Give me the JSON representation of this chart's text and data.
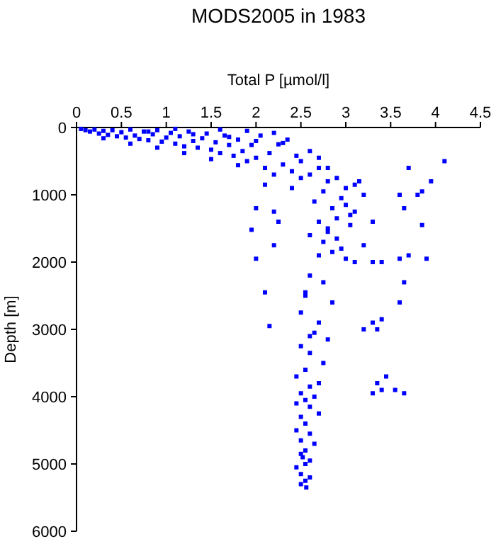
{
  "chart_data": {
    "type": "scatter",
    "title": "MODS2005 in 1983",
    "xlabel": "Total P [µmol/l]",
    "ylabel": "Depth [m]",
    "xlim": [
      0,
      4.5
    ],
    "xticks": [
      0,
      0.5,
      1,
      1.5,
      2,
      2.5,
      3,
      3.5,
      4,
      4.5
    ],
    "ylim": [
      6000,
      0
    ],
    "yticks": [
      0,
      1000,
      2000,
      3000,
      4000,
      5000,
      6000
    ],
    "grid": false,
    "marker": "square",
    "series": [
      {
        "color": "#0000ff",
        "x": [
          0.05,
          0.1,
          0.15,
          0.2,
          0.25,
          0.3,
          0.35,
          0.4,
          0.45,
          0.5,
          0.55,
          0.6,
          0.65,
          0.7,
          0.75,
          0.8,
          0.85,
          0.9,
          0.95,
          1.0,
          1.05,
          1.1,
          1.15,
          1.2,
          1.25,
          1.3,
          1.35,
          1.4,
          1.45,
          1.5,
          1.55,
          1.6,
          1.65,
          1.7,
          1.75,
          1.8,
          1.85,
          1.9,
          1.95,
          2.0,
          2.05,
          2.1,
          2.15,
          2.2,
          2.25,
          2.3,
          2.35,
          2.4,
          2.45,
          2.5,
          0.3,
          0.6,
          0.9,
          1.2,
          1.5,
          1.8,
          2.1,
          2.4,
          0.8,
          1.3,
          1.7,
          2.0,
          2.3,
          2.6,
          2.7,
          2.8,
          1.1,
          1.6,
          1.9,
          2.2,
          2.5,
          2.6,
          2.7,
          2.8,
          2.9,
          3.0,
          3.1,
          3.2,
          2.65,
          2.75,
          2.85,
          2.95,
          3.05,
          3.15,
          2.7,
          2.8,
          2.9,
          3.0,
          3.1,
          2.6,
          2.75,
          2.9,
          3.05,
          3.2,
          2.7,
          2.85,
          3.0,
          3.1,
          2.8,
          2.95,
          2.0,
          2.2,
          2.25,
          1.95,
          2.0,
          2.2,
          2.1,
          2.15,
          4.1,
          3.95,
          3.7,
          3.85,
          3.8,
          3.6,
          3.65,
          3.85,
          3.7,
          3.9,
          3.6,
          3.65,
          3.6,
          3.3,
          3.4,
          3.3,
          3.35,
          3.4,
          3.2,
          3.35,
          3.4,
          3.3,
          3.55,
          3.65,
          3.45,
          3.3,
          2.6,
          2.75,
          2.55,
          2.85,
          2.5,
          2.7,
          2.65,
          2.8,
          2.5,
          2.6,
          2.75,
          2.55,
          2.45,
          2.7,
          2.6,
          2.5,
          2.65,
          2.55,
          2.45,
          2.6,
          2.7,
          2.5,
          2.55,
          2.45,
          2.6,
          2.5,
          2.65,
          2.55,
          2.5,
          2.6,
          2.55,
          2.45,
          2.5,
          2.6,
          2.55,
          2.5,
          2.55,
          2.6,
          2.52,
          2.56
        ],
        "values": [
          20,
          40,
          60,
          30,
          90,
          50,
          110,
          40,
          130,
          70,
          150,
          30,
          120,
          170,
          60,
          190,
          100,
          40,
          210,
          150,
          80,
          240,
          130,
          280,
          60,
          200,
          300,
          160,
          90,
          330,
          220,
          380,
          120,
          260,
          420,
          180,
          350,
          500,
          260,
          450,
          120,
          600,
          380,
          700,
          250,
          550,
          180,
          650,
          420,
          750,
          160,
          240,
          300,
          380,
          470,
          560,
          850,
          900,
          60,
          100,
          140,
          200,
          230,
          350,
          450,
          600,
          20,
          30,
          50,
          80,
          500,
          700,
          600,
          800,
          750,
          900,
          850,
          1000,
          1100,
          950,
          1200,
          1050,
          1300,
          800,
          1400,
          1500,
          1350,
          1150,
          1250,
          1600,
          1700,
          1650,
          1450,
          1750,
          1900,
          1850,
          1950,
          2000,
          1550,
          1800,
          1200,
          1250,
          1400,
          1520,
          1950,
          1750,
          2450,
          2950,
          500,
          800,
          600,
          950,
          1000,
          1000,
          1200,
          1450,
          1900,
          1950,
          1950,
          2300,
          2600,
          2000,
          2000,
          2900,
          3000,
          2850,
          3000,
          3800,
          3900,
          3950,
          3900,
          3950,
          3700,
          1400,
          2200,
          2300,
          2450,
          2600,
          2750,
          2900,
          3050,
          3150,
          3250,
          3350,
          3500,
          3600,
          3700,
          3800,
          3850,
          3950,
          4000,
          4050,
          4100,
          4150,
          4250,
          4300,
          4400,
          4500,
          4550,
          4650,
          4700,
          4800,
          4850,
          4950,
          5000,
          5050,
          5150,
          5200,
          5250,
          5300,
          2500,
          3100,
          4900,
          5350
        ]
      }
    ]
  }
}
